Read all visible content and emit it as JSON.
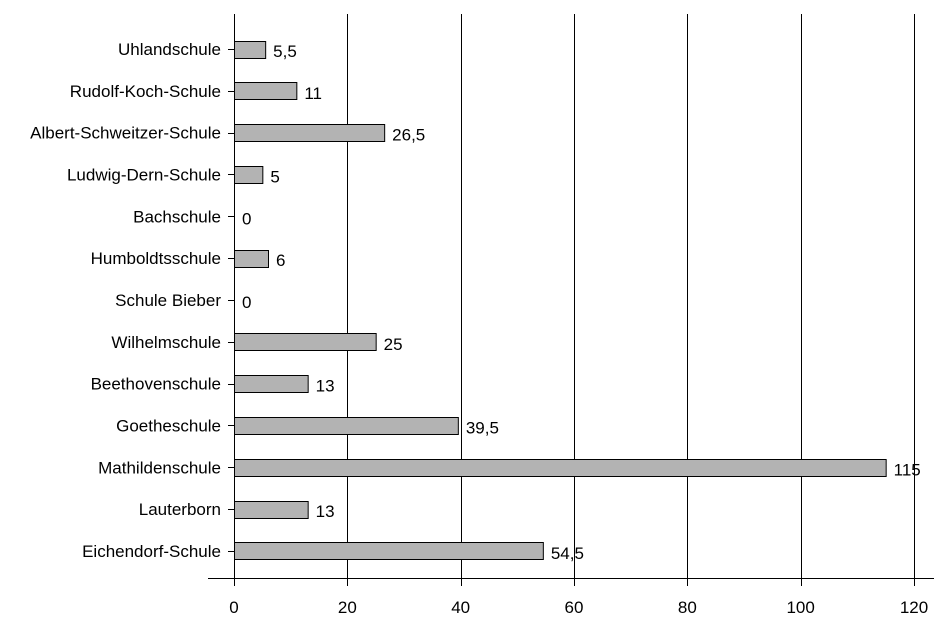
{
  "chart_data": {
    "type": "bar",
    "orientation": "horizontal",
    "categories": [
      "Uhlandschule",
      "Rudolf-Koch-Schule",
      "Albert-Schweitzer-Schule",
      "Ludwig-Dern-Schule",
      "Bachschule",
      "Humboldtsschule",
      "Schule Bieber",
      "Wilhelmschule",
      "Beethovenschule",
      "Goetheschule",
      "Mathildenschule",
      "Lauterborn",
      "Eichendorf-Schule"
    ],
    "values": [
      5.5,
      11,
      26.5,
      5,
      0,
      6,
      0,
      25,
      13,
      39.5,
      115,
      13,
      54.5
    ],
    "value_labels": [
      "5,5",
      "11",
      "26,5",
      "5",
      "0",
      "6",
      "0",
      "25",
      "13",
      "39,5",
      "115",
      "13",
      "54,5"
    ],
    "title": "",
    "xlabel": "",
    "ylabel": "",
    "xlim": [
      0,
      120
    ],
    "xticks": [
      0,
      20,
      40,
      60,
      80,
      100,
      120
    ],
    "xtick_labels": [
      "0",
      "20",
      "40",
      "60",
      "80",
      "100",
      "120"
    ],
    "grid": "vertical",
    "legend": "none",
    "colors": {
      "bar_fill": "#b3b3b3",
      "bar_stroke": "#000000",
      "grid": "#000000",
      "text": "#000000"
    }
  }
}
